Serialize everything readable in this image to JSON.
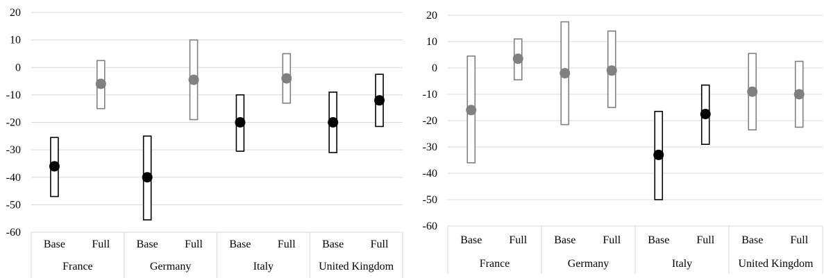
{
  "chart_data": [
    {
      "type": "interval",
      "groups": [
        "France",
        "Germany",
        "Italy",
        "United Kingdom"
      ],
      "subcategories": [
        "Base",
        "Full"
      ],
      "ylim": [
        -60,
        20
      ],
      "yticks": [
        "20",
        "10",
        "0",
        "-10",
        "-20",
        "-30",
        "-40",
        "-50",
        "-60"
      ],
      "grid": true,
      "points": [
        {
          "group": "France",
          "sub": "Base",
          "value": -36,
          "low": -47,
          "high": -25.5,
          "color": "#000000"
        },
        {
          "group": "France",
          "sub": "Full",
          "value": -6,
          "low": -15,
          "high": 2.5,
          "color": "#808080"
        },
        {
          "group": "Germany",
          "sub": "Base",
          "value": -40,
          "low": -55.5,
          "high": -25,
          "color": "#000000"
        },
        {
          "group": "Germany",
          "sub": "Full",
          "value": -4.5,
          "low": -19,
          "high": 10,
          "color": "#808080"
        },
        {
          "group": "Italy",
          "sub": "Base",
          "value": -20,
          "low": -30.5,
          "high": -10,
          "color": "#000000"
        },
        {
          "group": "Italy",
          "sub": "Full",
          "value": -4,
          "low": -13,
          "high": 5,
          "color": "#808080"
        },
        {
          "group": "United Kingdom",
          "sub": "Base",
          "value": -20,
          "low": -31,
          "high": -9,
          "color": "#000000"
        },
        {
          "group": "United Kingdom",
          "sub": "Full",
          "value": -12,
          "low": -21.5,
          "high": -2.5,
          "color": "#000000"
        }
      ]
    },
    {
      "type": "interval",
      "groups": [
        "France",
        "Germany",
        "Italy",
        "United Kingdom"
      ],
      "subcategories": [
        "Base",
        "Full"
      ],
      "ylim": [
        -60,
        20
      ],
      "yticks": [
        "20",
        "10",
        "0",
        "-10",
        "-20",
        "-30",
        "-40",
        "-50",
        "-60"
      ],
      "grid": true,
      "points": [
        {
          "group": "France",
          "sub": "Base",
          "value": -16,
          "low": -36,
          "high": 4.5,
          "color": "#808080"
        },
        {
          "group": "France",
          "sub": "Full",
          "value": 3.5,
          "low": -4.5,
          "high": 11,
          "color": "#808080"
        },
        {
          "group": "Germany",
          "sub": "Base",
          "value": -2,
          "low": -21.5,
          "high": 17.5,
          "color": "#808080"
        },
        {
          "group": "Germany",
          "sub": "Full",
          "value": -1,
          "low": -15,
          "high": 14,
          "color": "#808080"
        },
        {
          "group": "Italy",
          "sub": "Base",
          "value": -33,
          "low": -50,
          "high": -16.5,
          "color": "#000000"
        },
        {
          "group": "Italy",
          "sub": "Full",
          "value": -17.5,
          "low": -29,
          "high": -6.5,
          "color": "#000000"
        },
        {
          "group": "United Kingdom",
          "sub": "Base",
          "value": -9,
          "low": -23.5,
          "high": 5.5,
          "color": "#808080"
        },
        {
          "group": "United Kingdom",
          "sub": "Full",
          "value": -10,
          "low": -22.5,
          "high": 2.5,
          "color": "#808080"
        }
      ]
    }
  ]
}
